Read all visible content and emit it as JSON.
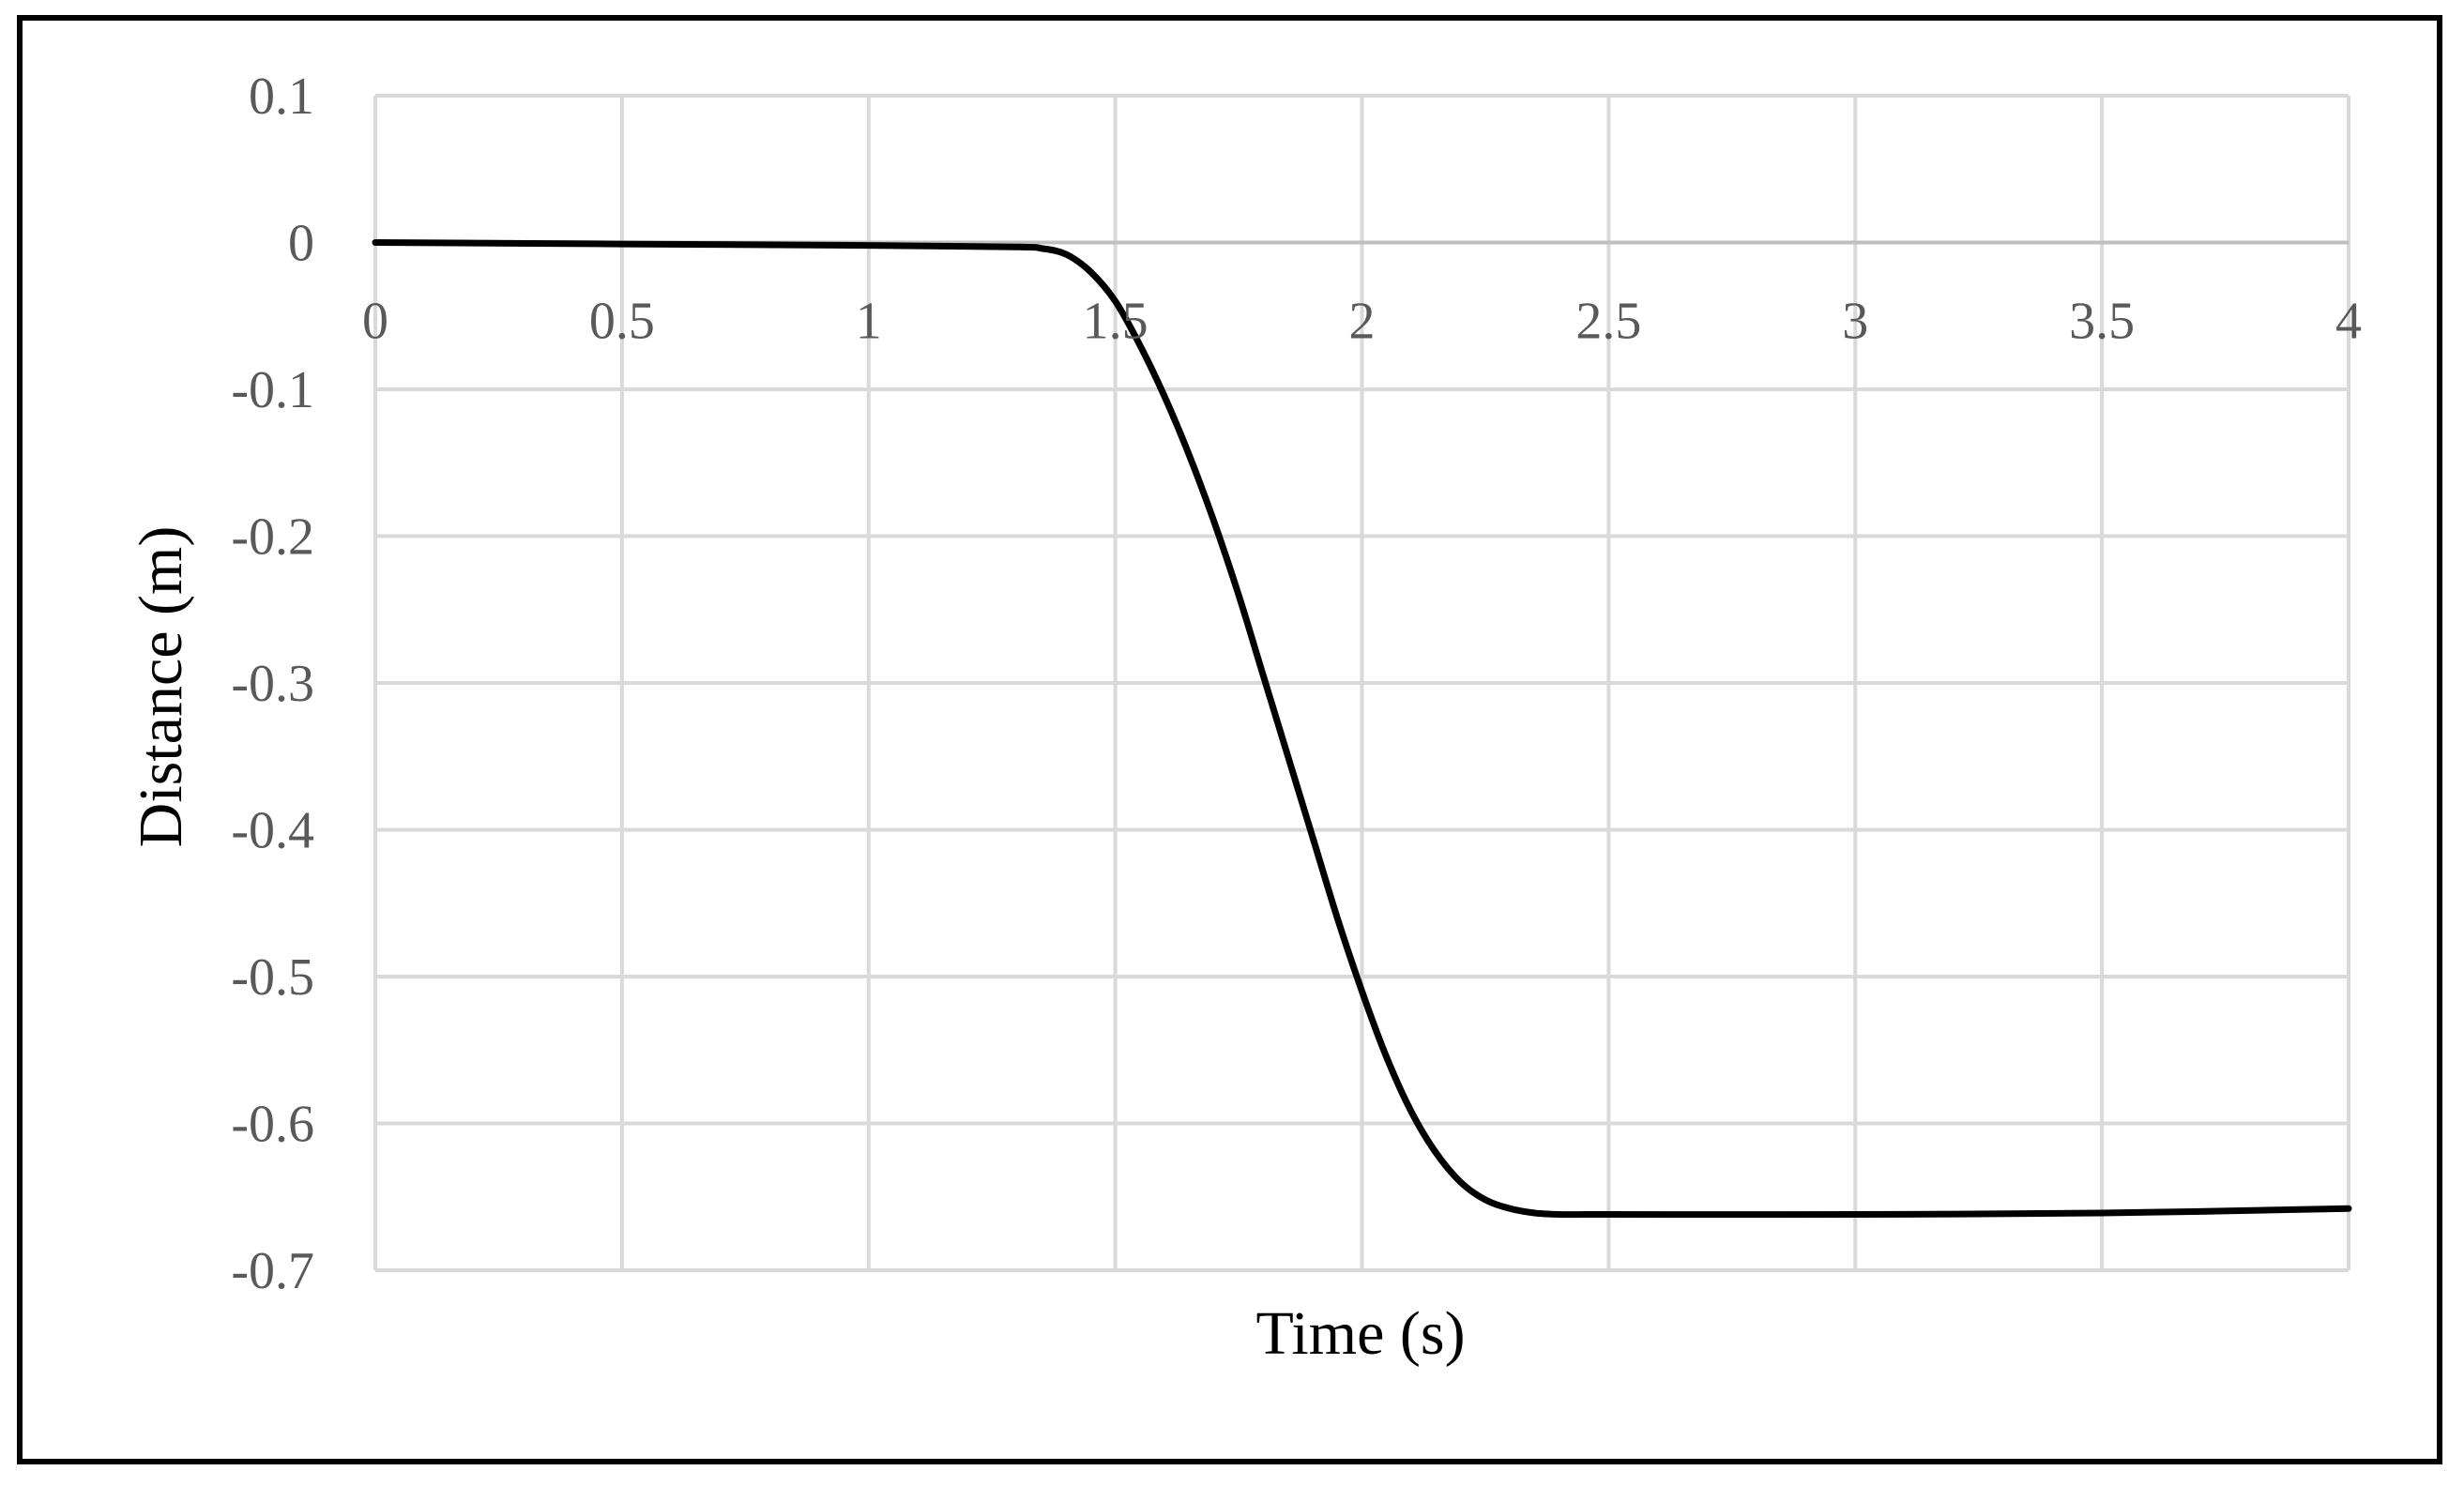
{
  "colors": {
    "frame": "#000000",
    "grid": "#d9d9d9",
    "zero_axis": "#bfbfbf",
    "tick_text": "#595959",
    "series": "#000000"
  },
  "chart_data": {
    "type": "line",
    "title": "",
    "xlabel": "Time (s)",
    "ylabel": "Distance (m)",
    "xlim": [
      0,
      4
    ],
    "ylim": [
      -0.7,
      0.1
    ],
    "x_ticks": [
      0,
      0.5,
      1,
      1.5,
      2,
      2.5,
      3,
      3.5,
      4
    ],
    "x_tick_labels": [
      "0",
      "0.5",
      "1",
      "1.5",
      "2",
      "2.5",
      "3",
      "3.5",
      "4"
    ],
    "y_ticks": [
      0.1,
      0,
      -0.1,
      -0.2,
      -0.3,
      -0.4,
      -0.5,
      -0.6,
      -0.7
    ],
    "y_tick_labels": [
      "0.1",
      "0",
      "-0.1",
      "-0.2",
      "-0.3",
      "-0.4",
      "-0.5",
      "-0.6",
      "-0.7"
    ],
    "grid": true,
    "legend": "none",
    "series": [
      {
        "x": [
          0,
          0.5,
          1.0,
          1.3,
          1.35,
          1.4,
          1.45,
          1.5,
          1.55,
          1.6,
          1.65,
          1.7,
          1.75,
          1.8,
          1.85,
          1.9,
          1.95,
          2.0,
          2.05,
          2.1,
          2.15,
          2.2,
          2.25,
          2.3,
          2.35,
          2.4,
          2.45,
          2.5,
          3.0,
          3.5,
          4.0
        ],
        "y": [
          0,
          -0.001,
          -0.002,
          -0.003,
          -0.004,
          -0.008,
          -0.02,
          -0.04,
          -0.07,
          -0.105,
          -0.145,
          -0.19,
          -0.24,
          -0.295,
          -0.35,
          -0.405,
          -0.46,
          -0.51,
          -0.555,
          -0.592,
          -0.62,
          -0.64,
          -0.652,
          -0.658,
          -0.661,
          -0.662,
          -0.662,
          -0.662,
          -0.662,
          -0.661,
          -0.658
        ]
      }
    ]
  }
}
